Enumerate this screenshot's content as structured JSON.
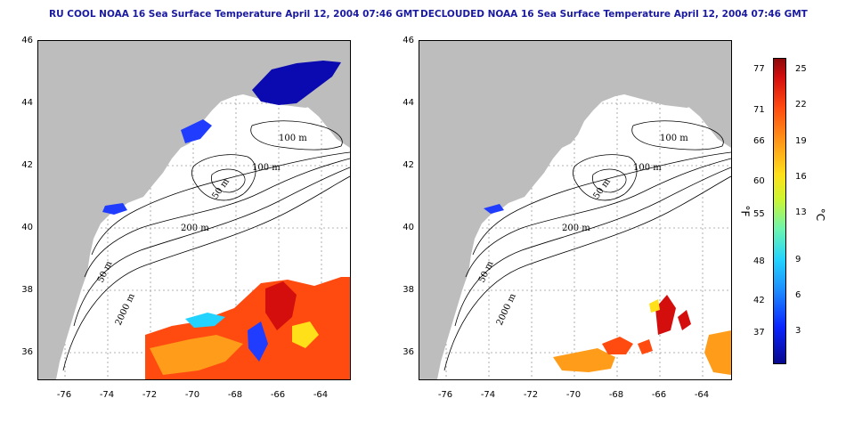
{
  "left_panel": {
    "title": "RU COOL NOAA 16 Sea Surface Temperature April 12, 2004 07:46 GMT"
  },
  "right_panel": {
    "title": "DECLOUDED NOAA 16 Sea Surface Temperature April 12, 2004 07:46 GMT"
  },
  "map_axes": {
    "lat_ticks": [
      "46",
      "44",
      "42",
      "40",
      "38",
      "36"
    ],
    "lon_ticks": [
      "-76",
      "-74",
      "-72",
      "-70",
      "-68",
      "-66",
      "-64"
    ]
  },
  "contours": {
    "labels": [
      "100 m",
      "100 m",
      "50 m",
      "200 m",
      "50 m",
      "2000 m"
    ]
  },
  "colorbar": {
    "fahrenheit_ticks": [
      "77",
      "71",
      "66",
      "60",
      "55",
      "48",
      "42",
      "37"
    ],
    "celsius_ticks": [
      "25",
      "22",
      "19",
      "16",
      "13",
      "9",
      "6",
      "3"
    ],
    "fahrenheit_unit": "°F",
    "celsius_unit": "°C",
    "colors": [
      "#08088e",
      "#0b25ff",
      "#1c8cff",
      "#22d3ff",
      "#6cf5b0",
      "#cdf530",
      "#ffe019",
      "#ff9c19",
      "#ff4a10",
      "#d40d0d",
      "#8c0a0a"
    ]
  }
}
